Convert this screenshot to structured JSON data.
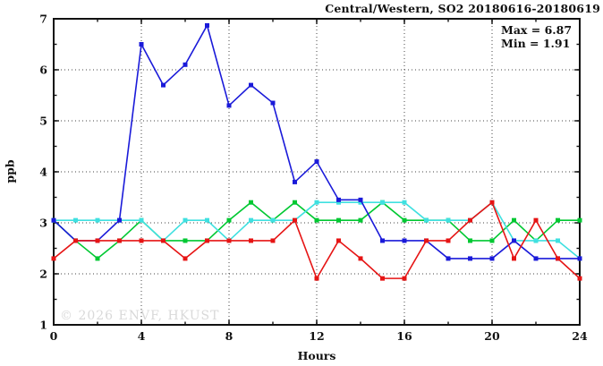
{
  "title": "Central/Western, SO2 20180616-20180619",
  "stats": {
    "max_label": "Max = 6.87",
    "min_label": "Min = 1.91"
  },
  "watermark": "© 2026 ENVF, HKUST",
  "chart_data": {
    "type": "line",
    "title": "Central/Western, SO2 20180616-20180619",
    "xlabel": "Hours",
    "ylabel": "ppb",
    "xlim": [
      0,
      24
    ],
    "ylim": [
      1,
      7
    ],
    "xticks_major": [
      0,
      4,
      8,
      12,
      16,
      20,
      24
    ],
    "xtick_minor_step": 2,
    "yticks_major": [
      1,
      2,
      3,
      4,
      5,
      6,
      7
    ],
    "ytick_minor_step": 0.5,
    "grid": true,
    "grid_x": [
      4,
      8,
      12,
      16,
      20
    ],
    "grid_y": [
      2,
      3,
      4,
      5,
      6
    ],
    "legend_position": "none",
    "max": 6.87,
    "min": 1.91,
    "x": [
      0,
      1,
      2,
      3,
      4,
      5,
      6,
      7,
      8,
      9,
      10,
      11,
      12,
      13,
      14,
      15,
      16,
      17,
      18,
      19,
      20,
      21,
      22,
      23,
      24
    ],
    "series": [
      {
        "name": "green-series",
        "color": "#00c832",
        "values": [
          3.05,
          2.65,
          2.3,
          2.65,
          3.05,
          2.65,
          2.65,
          2.65,
          3.05,
          3.4,
          3.05,
          3.4,
          3.05,
          3.05,
          3.05,
          3.4,
          3.05,
          3.05,
          3.05,
          2.65,
          2.65,
          3.05,
          2.65,
          3.05,
          3.05
        ]
      },
      {
        "name": "cyan-series",
        "color": "#3fe0e0",
        "values": [
          3.05,
          3.05,
          3.05,
          3.05,
          3.05,
          2.65,
          3.05,
          3.05,
          2.65,
          3.05,
          3.05,
          3.05,
          3.4,
          3.4,
          3.4,
          3.4,
          3.4,
          3.05,
          3.05,
          3.05,
          3.4,
          2.65,
          2.65,
          2.65,
          2.3
        ]
      },
      {
        "name": "blue-series",
        "color": "#1a1ad9",
        "values": [
          3.05,
          2.65,
          2.65,
          3.05,
          6.5,
          5.7,
          6.1,
          6.87,
          5.3,
          5.7,
          5.35,
          3.8,
          4.2,
          3.45,
          3.45,
          2.65,
          2.65,
          2.65,
          2.3,
          2.3,
          2.3,
          2.65,
          2.3,
          2.3,
          2.3
        ]
      },
      {
        "name": "red-series",
        "color": "#e61414",
        "values": [
          2.3,
          2.65,
          2.65,
          2.65,
          2.65,
          2.65,
          2.3,
          2.65,
          2.65,
          2.65,
          2.65,
          3.05,
          1.91,
          2.65,
          2.3,
          1.91,
          1.91,
          2.65,
          2.65,
          3.05,
          3.4,
          2.3,
          3.05,
          2.3,
          1.91
        ]
      }
    ]
  }
}
